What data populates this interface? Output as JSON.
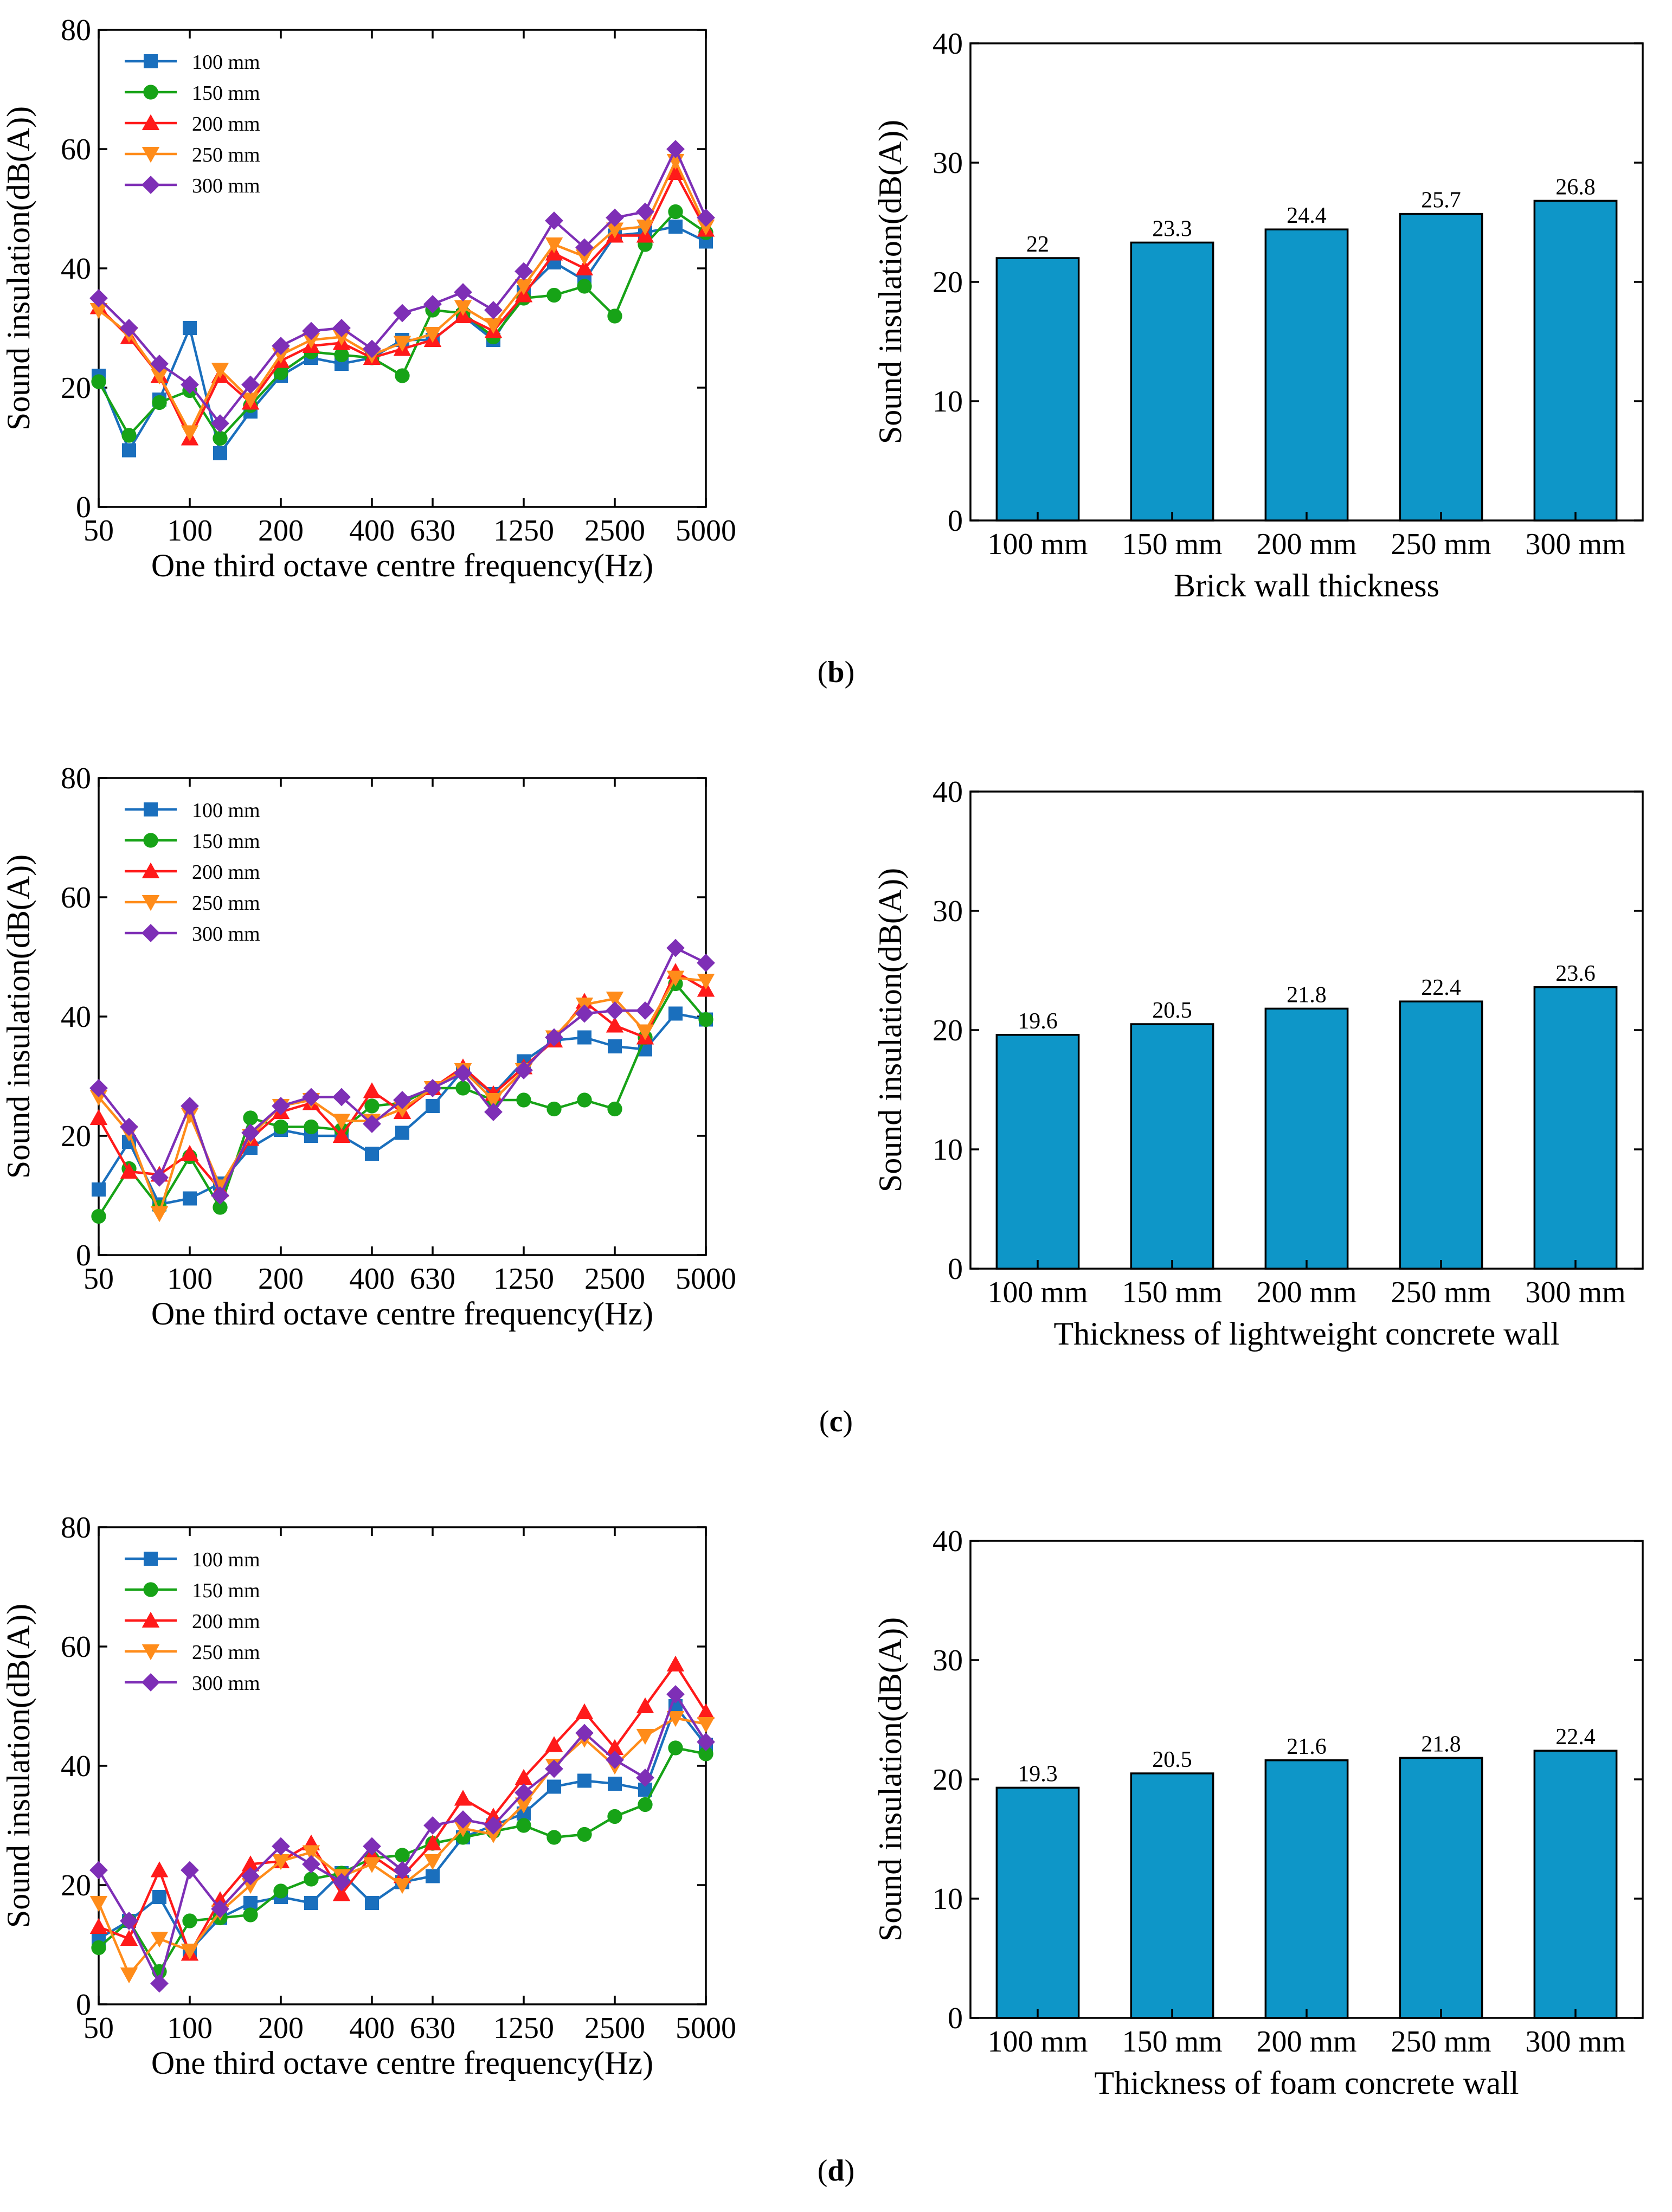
{
  "panel_labels": [
    {
      "open": "(",
      "letter": "b",
      "close": ")"
    },
    {
      "open": "(",
      "letter": "c",
      "close": ")"
    },
    {
      "open": "(",
      "letter": "d",
      "close": ")"
    }
  ],
  "style": {
    "series_colors": [
      "#1a6fbd",
      "#17a317",
      "#ff1a1a",
      "#ff8c1a",
      "#7e2fb6"
    ],
    "series_markers": [
      "square",
      "circle",
      "triangle-up",
      "triangle-down",
      "diamond"
    ],
    "bar_color": "#0e96c8",
    "axis_color": "#000000"
  },
  "chart_data": [
    {
      "id": "b-line",
      "type": "line",
      "xlabel": "One third octave centre frequency(Hz)",
      "ylabel": "Sound insulation(dB(A))",
      "ylim": [
        0,
        80
      ],
      "yticks": [
        0,
        20,
        40,
        60,
        80
      ],
      "x_index_range": [
        0,
        20
      ],
      "xtick_labels": [
        {
          "i": 0,
          "label": "50"
        },
        {
          "i": 3,
          "label": "100"
        },
        {
          "i": 6,
          "label": "200"
        },
        {
          "i": 9,
          "label": "400"
        },
        {
          "i": 11,
          "label": "630"
        },
        {
          "i": 14,
          "label": "1250"
        },
        {
          "i": 17,
          "label": "2500"
        },
        {
          "i": 20,
          "label": "5000"
        }
      ],
      "legend": "top-left",
      "series": [
        {
          "name": "100 mm",
          "values": [
            22,
            9.5,
            18,
            30,
            9,
            16,
            22,
            25,
            24,
            25,
            28,
            28,
            32,
            28,
            36,
            41,
            38,
            45.5,
            46,
            47,
            44.5
          ]
        },
        {
          "name": "150 mm",
          "values": [
            21,
            12,
            17.5,
            19.5,
            11.5,
            17,
            22.5,
            26,
            25.5,
            25,
            22,
            33,
            32.5,
            28.5,
            35,
            35.5,
            37,
            32,
            44,
            49.5,
            46
          ]
        },
        {
          "name": "200 mm",
          "values": [
            33.5,
            28.5,
            22,
            11.5,
            22,
            17.5,
            24.5,
            27,
            27.5,
            25,
            26.5,
            28,
            32,
            29.5,
            35.5,
            42.5,
            40,
            45.5,
            45.5,
            56,
            46.5
          ]
        },
        {
          "name": "250 mm",
          "values": [
            33,
            29,
            22,
            12.5,
            23,
            18,
            25.5,
            28,
            28.5,
            25.5,
            27.5,
            29,
            33.5,
            30.5,
            37,
            44,
            42,
            46.5,
            47,
            58,
            47
          ]
        },
        {
          "name": "300 mm",
          "values": [
            35,
            30,
            24,
            20.5,
            14,
            20.5,
            27,
            29.5,
            30,
            26.5,
            32.5,
            34,
            36,
            33,
            39.5,
            48,
            43.5,
            48.5,
            49.5,
            60,
            48.5
          ]
        }
      ]
    },
    {
      "id": "b-bar",
      "type": "bar",
      "categories": [
        "100 mm",
        "150 mm",
        "200 mm",
        "250 mm",
        "300 mm"
      ],
      "values": [
        22,
        23.3,
        24.4,
        25.7,
        26.8
      ],
      "data_labels": [
        "22",
        "23.3",
        "24.4",
        "25.7",
        "26.8"
      ],
      "xlabel": "Brick wall thickness",
      "ylabel": "Sound insulation(dB(A))",
      "ylim": [
        0,
        40
      ],
      "yticks": [
        0,
        10,
        20,
        30,
        40
      ]
    },
    {
      "id": "c-line",
      "type": "line",
      "xlabel": "One third octave centre frequency(Hz)",
      "ylabel": "Sound insulation(dB(A))",
      "ylim": [
        0,
        80
      ],
      "yticks": [
        0,
        20,
        40,
        60,
        80
      ],
      "x_index_range": [
        0,
        20
      ],
      "xtick_labels": [
        {
          "i": 0,
          "label": "50"
        },
        {
          "i": 3,
          "label": "100"
        },
        {
          "i": 6,
          "label": "200"
        },
        {
          "i": 9,
          "label": "400"
        },
        {
          "i": 11,
          "label": "630"
        },
        {
          "i": 14,
          "label": "1250"
        },
        {
          "i": 17,
          "label": "2500"
        },
        {
          "i": 20,
          "label": "5000"
        }
      ],
      "legend": "top-left",
      "series": [
        {
          "name": "100 mm",
          "values": [
            11,
            19,
            8.5,
            9.5,
            12,
            18,
            21,
            20,
            20,
            17,
            20.5,
            25,
            31,
            27,
            32.5,
            36,
            36.5,
            35,
            34.5,
            40.5,
            39.5
          ]
        },
        {
          "name": "150 mm",
          "values": [
            6.5,
            14.5,
            8,
            16.5,
            8,
            23,
            21.5,
            21.5,
            21,
            25,
            25.5,
            28,
            28,
            26,
            26,
            24.5,
            26,
            24.5,
            36.5,
            45.5,
            39.5
          ]
        },
        {
          "name": "200 mm",
          "values": [
            23,
            14,
            13.5,
            17,
            11,
            19.5,
            24,
            25.5,
            20,
            27.5,
            24,
            28,
            31.5,
            27,
            31.5,
            36,
            42.5,
            38.5,
            36.5,
            47.5,
            44.5
          ]
        },
        {
          "name": "250 mm",
          "values": [
            26.5,
            20.5,
            7,
            23.5,
            11.5,
            20,
            25,
            26,
            22.5,
            22.5,
            24.5,
            28,
            31,
            26,
            31,
            36.5,
            42,
            43,
            37.5,
            46.5,
            46
          ]
        },
        {
          "name": "300 mm",
          "values": [
            28,
            21.5,
            13,
            25,
            10,
            20.5,
            25,
            26.5,
            26.5,
            22,
            26,
            28,
            30.5,
            24,
            31,
            36.5,
            40.5,
            41,
            41,
            51.5,
            49
          ]
        }
      ]
    },
    {
      "id": "c-bar",
      "type": "bar",
      "categories": [
        "100 mm",
        "150 mm",
        "200 mm",
        "250 mm",
        "300 mm"
      ],
      "values": [
        19.6,
        20.5,
        21.8,
        22.4,
        23.6
      ],
      "data_labels": [
        "19.6",
        "20.5",
        "21.8",
        "22.4",
        "23.6"
      ],
      "xlabel": "Thickness of lightweight concrete wall",
      "ylabel": "Sound insulation(dB(A))",
      "ylim": [
        0,
        40
      ],
      "yticks": [
        0,
        10,
        20,
        30,
        40
      ]
    },
    {
      "id": "d-line",
      "type": "line",
      "xlabel": "One third octave centre frequency(Hz)",
      "ylabel": "Sound insulation(dB(A))",
      "ylim": [
        0,
        80
      ],
      "yticks": [
        0,
        20,
        40,
        60,
        80
      ],
      "x_index_range": [
        0,
        20
      ],
      "xtick_labels": [
        {
          "i": 0,
          "label": "50"
        },
        {
          "i": 3,
          "label": "100"
        },
        {
          "i": 6,
          "label": "200"
        },
        {
          "i": 9,
          "label": "400"
        },
        {
          "i": 11,
          "label": "630"
        },
        {
          "i": 14,
          "label": "1250"
        },
        {
          "i": 17,
          "label": "2500"
        },
        {
          "i": 20,
          "label": "5000"
        }
      ],
      "legend": "top-left",
      "series": [
        {
          "name": "100 mm",
          "values": [
            11,
            14,
            18,
            9,
            14.5,
            17,
            18,
            17,
            22,
            17,
            20.5,
            21.5,
            28,
            30,
            32,
            36.5,
            37.5,
            37,
            36,
            50,
            43.5
          ]
        },
        {
          "name": "150 mm",
          "values": [
            9.5,
            14,
            5.5,
            14,
            14.5,
            15,
            19,
            21,
            22,
            24.5,
            25,
            27,
            28,
            29,
            30,
            28,
            28.5,
            31.5,
            33.5,
            43,
            42
          ]
        },
        {
          "name": "200 mm",
          "values": [
            13,
            11,
            22.5,
            8.5,
            17.5,
            23.5,
            24,
            27,
            18.5,
            25,
            21.5,
            27,
            34.5,
            31.5,
            38,
            43.5,
            49,
            43,
            50,
            57,
            49
          ]
        },
        {
          "name": "250 mm",
          "values": [
            17,
            5,
            11,
            9,
            15.5,
            20,
            24,
            25.5,
            21.5,
            23.5,
            20,
            24,
            29.5,
            28.5,
            33.5,
            40,
            44.5,
            40,
            45,
            48,
            47
          ]
        },
        {
          "name": "300 mm",
          "values": [
            22.5,
            14,
            3.5,
            22.5,
            16,
            21.5,
            26.5,
            23.5,
            20.5,
            26.5,
            22.5,
            30,
            31,
            30,
            35.5,
            39.5,
            45.5,
            41,
            38,
            52,
            44
          ]
        }
      ]
    },
    {
      "id": "d-bar",
      "type": "bar",
      "categories": [
        "100 mm",
        "150 mm",
        "200 mm",
        "250 mm",
        "300 mm"
      ],
      "values": [
        19.3,
        20.5,
        21.6,
        21.8,
        22.4
      ],
      "data_labels": [
        "19.3",
        "20.5",
        "21.6",
        "21.8",
        "22.4"
      ],
      "xlabel": "Thickness of foam concrete wall",
      "ylabel": "Sound insulation(dB(A))",
      "ylim": [
        0,
        40
      ],
      "yticks": [
        0,
        10,
        20,
        30,
        40
      ]
    }
  ]
}
